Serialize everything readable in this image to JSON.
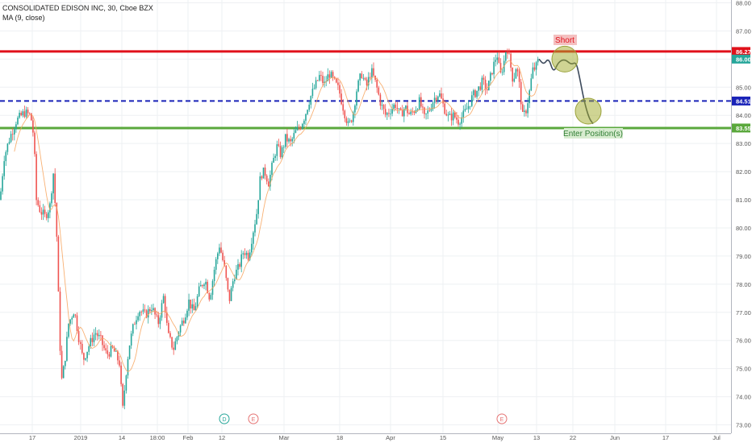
{
  "legend": {
    "symbol_line": "CONSOLIDATED EDISON INC, 30, Cboe BZX",
    "indicator_line": "MA (9, close)"
  },
  "chart_data": {
    "type": "candlestick",
    "ylim": [
      72.7,
      88.1
    ],
    "y_ticks": [
      "73.00",
      "74.00",
      "75.00",
      "76.00",
      "77.00",
      "78.00",
      "79.00",
      "80.00",
      "81.00",
      "82.00",
      "83.00",
      "84.00",
      "85.00",
      "86.00",
      "87.00",
      "88.00"
    ],
    "x_ticks": [
      "17",
      "2019",
      "14",
      "18:00",
      "Feb",
      "12",
      "Mar",
      "18",
      "Apr",
      "15",
      "May",
      "13",
      "22",
      "Jun",
      "17",
      "Jul"
    ],
    "grid": true,
    "levels": [
      {
        "value": 86.27,
        "label": "86.27",
        "color": "#e0111b",
        "style": "solid"
      },
      {
        "value": 84.51,
        "label": "84.51",
        "color": "#1a23b8",
        "style": "dashed"
      },
      {
        "value": 83.55,
        "label": "83.55",
        "color": "#5aa83c",
        "style": "solid"
      }
    ],
    "last_price": {
      "value": 86.0,
      "label": "86.00",
      "color": "#26a69a"
    },
    "annotations": [
      {
        "text": "Short",
        "color": "#e0111b",
        "bg": "#f4c0c0"
      },
      {
        "text": "Enter Position(s)",
        "color": "#2e7d32",
        "bg": "#d8ecd0"
      }
    ],
    "event_markers": [
      {
        "text": "D",
        "color": "#26a69a"
      },
      {
        "text": "E",
        "color": "#e57373"
      },
      {
        "text": "E",
        "color": "#e57373"
      }
    ],
    "price_path": [
      [
        0,
        81.0
      ],
      [
        5,
        82.5
      ],
      [
        12,
        83.2
      ],
      [
        20,
        83.8
      ],
      [
        30,
        84.1
      ],
      [
        38,
        84.0
      ],
      [
        42,
        83.2
      ],
      [
        45,
        81.0
      ],
      [
        50,
        80.6
      ],
      [
        56,
        80.4
      ],
      [
        62,
        80.8
      ],
      [
        66,
        82.0
      ],
      [
        70,
        80.0
      ],
      [
        73,
        77.0
      ],
      [
        76,
        74.5
      ],
      [
        80,
        75.2
      ],
      [
        85,
        76.6
      ],
      [
        92,
        77.1
      ],
      [
        97,
        76.2
      ],
      [
        103,
        75.3
      ],
      [
        110,
        75.8
      ],
      [
        118,
        76.3
      ],
      [
        125,
        76.0
      ],
      [
        132,
        75.5
      ],
      [
        140,
        75.7
      ],
      [
        148,
        75.2
      ],
      [
        152,
        73.5
      ],
      [
        156,
        74.8
      ],
      [
        160,
        75.8
      ],
      [
        166,
        76.6
      ],
      [
        172,
        77.1
      ],
      [
        180,
        76.9
      ],
      [
        188,
        77.2
      ],
      [
        196,
        76.6
      ],
      [
        203,
        77.6
      ],
      [
        208,
        76.2
      ],
      [
        215,
        75.7
      ],
      [
        222,
        76.4
      ],
      [
        228,
        76.8
      ],
      [
        234,
        77.4
      ],
      [
        240,
        77.0
      ],
      [
        247,
        77.8
      ],
      [
        254,
        78.2
      ],
      [
        260,
        77.5
      ],
      [
        266,
        78.6
      ],
      [
        272,
        79.4
      ],
      [
        278,
        78.6
      ],
      [
        284,
        77.4
      ],
      [
        290,
        78.3
      ],
      [
        296,
        78.6
      ],
      [
        302,
        79.2
      ],
      [
        308,
        79.0
      ],
      [
        313,
        79.8
      ],
      [
        318,
        80.5
      ],
      [
        323,
        81.9
      ],
      [
        328,
        82.0
      ],
      [
        333,
        81.6
      ],
      [
        338,
        82.3
      ],
      [
        343,
        82.9
      ],
      [
        348,
        82.6
      ],
      [
        354,
        83.2
      ],
      [
        360,
        83.0
      ],
      [
        366,
        83.4
      ],
      [
        372,
        83.6
      ],
      [
        378,
        84.0
      ],
      [
        384,
        84.6
      ],
      [
        390,
        85.0
      ],
      [
        396,
        85.4
      ],
      [
        402,
        85.1
      ],
      [
        408,
        85.5
      ],
      [
        414,
        85.2
      ],
      [
        420,
        84.9
      ],
      [
        426,
        84.2
      ],
      [
        432,
        83.6
      ],
      [
        437,
        84.0
      ],
      [
        442,
        84.9
      ],
      [
        448,
        85.5
      ],
      [
        454,
        85.0
      ],
      [
        460,
        85.6
      ],
      [
        466,
        85.1
      ],
      [
        472,
        84.4
      ],
      [
        478,
        84.0
      ],
      [
        484,
        84.2
      ],
      [
        490,
        84.4
      ],
      [
        496,
        84.0
      ],
      [
        502,
        84.3
      ],
      [
        508,
        84.0
      ],
      [
        514,
        84.2
      ],
      [
        520,
        84.5
      ],
      [
        526,
        83.9
      ],
      [
        532,
        84.2
      ],
      [
        538,
        84.6
      ],
      [
        544,
        84.8
      ],
      [
        550,
        84.3
      ],
      [
        556,
        83.9
      ],
      [
        562,
        84.0
      ],
      [
        568,
        83.8
      ],
      [
        574,
        84.0
      ],
      [
        580,
        84.3
      ],
      [
        586,
        84.7
      ],
      [
        592,
        84.9
      ],
      [
        598,
        85.2
      ],
      [
        604,
        84.9
      ],
      [
        610,
        85.6
      ],
      [
        616,
        86.2
      ],
      [
        620,
        85.4
      ],
      [
        624,
        85.8
      ],
      [
        628,
        86.5
      ],
      [
        632,
        85.9
      ],
      [
        636,
        85.2
      ],
      [
        640,
        85.8
      ],
      [
        644,
        85.0
      ],
      [
        648,
        83.9
      ],
      [
        652,
        84.2
      ],
      [
        656,
        84.8
      ],
      [
        660,
        85.6
      ],
      [
        664,
        85.7
      ],
      [
        668,
        86.0
      ]
    ],
    "projection_path": [
      [
        668,
        86.0
      ],
      [
        674,
        85.8
      ],
      [
        680,
        86.05
      ],
      [
        686,
        85.5
      ],
      [
        692,
        85.9
      ],
      [
        700,
        86.0
      ],
      [
        708,
        85.8
      ],
      [
        714,
        85.9
      ],
      [
        718,
        85.4
      ],
      [
        724,
        84.5
      ],
      [
        730,
        83.9
      ],
      [
        735,
        83.7
      ]
    ]
  }
}
